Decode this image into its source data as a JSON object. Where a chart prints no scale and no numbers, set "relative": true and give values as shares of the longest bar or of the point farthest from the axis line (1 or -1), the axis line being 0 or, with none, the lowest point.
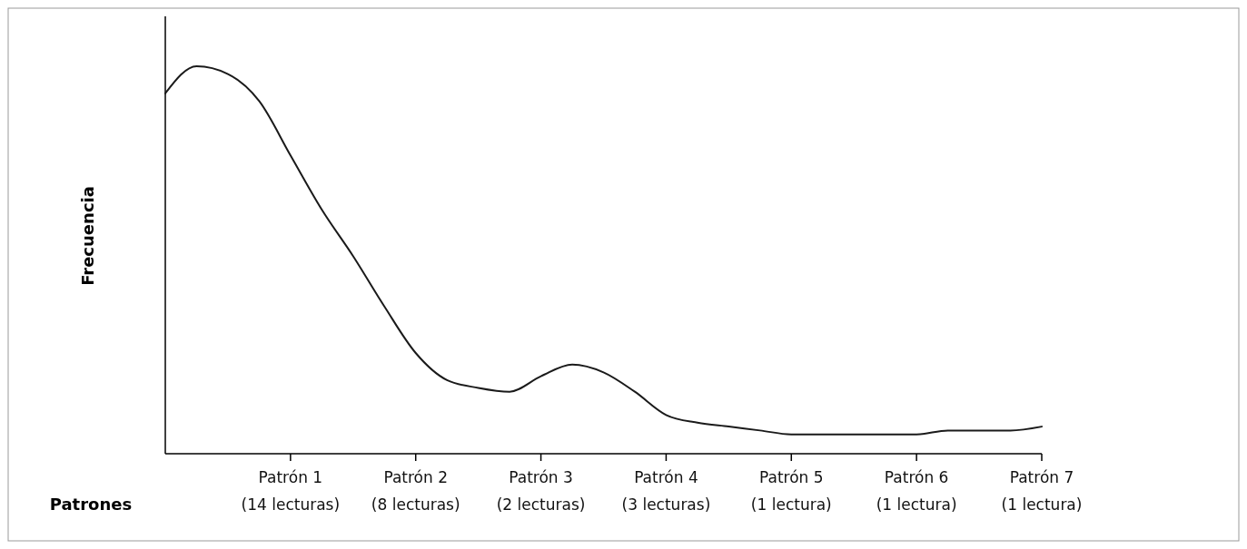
{
  "chart_data": {
    "type": "line",
    "relative": true,
    "xlabel": "Patrones",
    "ylabel": "Frecuencia",
    "categories": [
      null,
      null,
      null,
      null,
      "Patrón 1\n(14 lecturas)",
      null,
      null,
      null,
      "Patrón 2\n(8 lecturas)",
      null,
      null,
      null,
      "Patrón 3\n(2 lecturas)",
      null,
      null,
      null,
      "Patrón 4\n(3 lecturas)",
      null,
      null,
      null,
      "Patrón 5\n(1 lectura)",
      null,
      null,
      null,
      "Patrón 6\n(1 lectura)",
      null,
      null,
      null,
      "Patrón 7\n(1 lectura)"
    ],
    "series": [
      {
        "color": "#1a1a1a",
        "line_style": "solid",
        "values": [
          0.93,
          1,
          0.98,
          0.91,
          0.77,
          0.63,
          0.51,
          0.38,
          0.26,
          0.19,
          0.17,
          0.16,
          0.2,
          0.23,
          0.21,
          0.16,
          0.1,
          0.08,
          0.07,
          0.06,
          0.05,
          0.05,
          0.05,
          0.05,
          0.05,
          0.06,
          0.06,
          0.06,
          0.07
        ]
      }
    ]
  }
}
